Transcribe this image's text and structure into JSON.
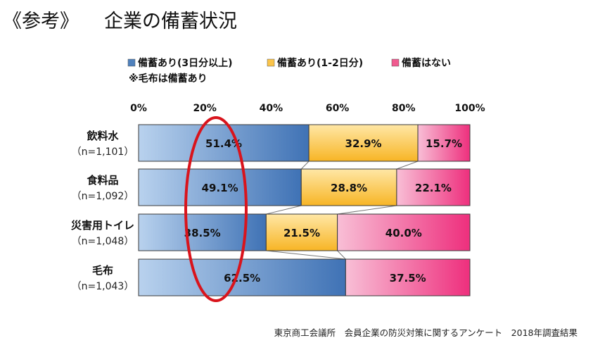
{
  "heading": {
    "prefix": "《参考》",
    "title": "企業の備蓄状況"
  },
  "source": "東京商工会議所　会員企業の防災対策に関するアンケート　2018年調査結果",
  "chart_data": {
    "type": "bar",
    "orientation": "horizontal",
    "stacked": true,
    "categories": [
      "飲料水",
      "食料品",
      "災害用トイレ",
      "毛布"
    ],
    "category_sublabels": [
      "（n=1,101）",
      "（n=1,092）",
      "（n=1,048）",
      "（n=1,043）"
    ],
    "series": [
      {
        "name": "備蓄あり(3日分以上)",
        "color": "#4f81bd",
        "values": [
          51.4,
          49.1,
          38.5,
          62.5
        ],
        "labels": [
          "51.4%",
          "49.1%",
          "38.5%",
          "62.5%"
        ]
      },
      {
        "name": "備蓄あり(1-2日分)",
        "color": "#fbc44a",
        "values": [
          32.9,
          28.8,
          21.5,
          0
        ],
        "labels": [
          "32.9%",
          "28.8%",
          "21.5%",
          ""
        ]
      },
      {
        "name": "備蓄はない",
        "color": "#f05a8f",
        "values": [
          15.7,
          22.1,
          40.0,
          37.5
        ],
        "labels": [
          "15.7%",
          "22.1%",
          "40.0%",
          "37.5%"
        ]
      }
    ],
    "legend_note": "※毛布は備蓄あり",
    "xlim": [
      0,
      100
    ],
    "xticks": [
      0,
      20,
      40,
      60,
      80,
      100
    ],
    "xtick_labels": [
      "0%",
      "20%",
      "40%",
      "60%",
      "80%",
      "100%"
    ],
    "legend_position": "top",
    "annotation": "red ellipse highlighting the 20% region"
  }
}
